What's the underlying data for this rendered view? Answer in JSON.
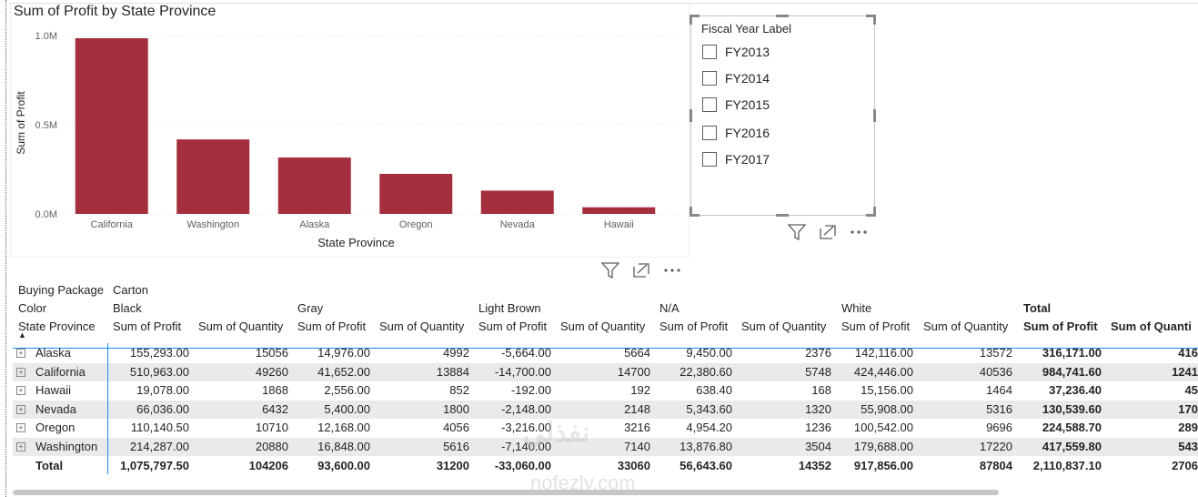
{
  "chart": {
    "title": "Sum of Profit by State Province"
  },
  "chart_data": {
    "type": "bar",
    "title": "Sum of Profit by State Province",
    "xlabel": "State Province",
    "ylabel": "Sum of Profit",
    "categories": [
      "California",
      "Washington",
      "Alaska",
      "Oregon",
      "Nevada",
      "Hawaii"
    ],
    "values": [
      984741.6,
      417559.8,
      316171.0,
      224588.7,
      130539.6,
      37236.4
    ],
    "yticks": [
      "0.0M",
      "0.5M",
      "1.0M"
    ],
    "ytick_values": [
      0,
      500000,
      1000000
    ],
    "ylim": [
      0,
      1000000
    ],
    "grid": true,
    "bar_color": "#a4303f"
  },
  "slicer": {
    "title": "Fiscal Year Label",
    "items": [
      "FY2013",
      "FY2014",
      "FY2015",
      "FY2016",
      "FY2017"
    ]
  },
  "icons": {
    "filter": "filter-icon",
    "focus": "focus-mode-icon",
    "more": "more-options-icon"
  },
  "matrix": {
    "h1_label": "Buying Package",
    "h1_value": "Carton",
    "h2_label": "Color",
    "colors": [
      "Black",
      "Gray",
      "Light Brown",
      "N/A",
      "White",
      "Total"
    ],
    "h3_label": "State Province",
    "measure_profit": "Sum of Profit",
    "measure_quantity": "Sum of Quantity",
    "total_measure_quantity": "Sum of Quanti",
    "rows": [
      {
        "state": "Alaska",
        "cells": [
          "155,293.00",
          "15056",
          "14,976.00",
          "4992",
          "-5,664.00",
          "5664",
          "9,450.00",
          "2376",
          "142,116.00",
          "13572",
          "316,171.00",
          "416"
        ]
      },
      {
        "state": "California",
        "cells": [
          "510,963.00",
          "49260",
          "41,652.00",
          "13884",
          "-14,700.00",
          "14700",
          "22,380.60",
          "5748",
          "424,446.00",
          "40536",
          "984,741.60",
          "1241"
        ]
      },
      {
        "state": "Hawaii",
        "cells": [
          "19,078.00",
          "1868",
          "2,556.00",
          "852",
          "-192.00",
          "192",
          "638.40",
          "168",
          "15,156.00",
          "1464",
          "37,236.40",
          "45"
        ]
      },
      {
        "state": "Nevada",
        "cells": [
          "66,036.00",
          "6432",
          "5,400.00",
          "1800",
          "-2,148.00",
          "2148",
          "5,343.60",
          "1320",
          "55,908.00",
          "5316",
          "130,539.60",
          "170"
        ]
      },
      {
        "state": "Oregon",
        "cells": [
          "110,140.50",
          "10710",
          "12,168.00",
          "4056",
          "-3,216.00",
          "3216",
          "4,954.20",
          "1236",
          "100,542.00",
          "9696",
          "224,588.70",
          "289"
        ]
      },
      {
        "state": "Washington",
        "cells": [
          "214,287.00",
          "20880",
          "16,848.00",
          "5616",
          "-7,140.00",
          "7140",
          "13,876.80",
          "3504",
          "179,688.00",
          "17220",
          "417,559.80",
          "543"
        ]
      }
    ],
    "total": {
      "label": "Total",
      "cells": [
        "1,075,797.50",
        "104206",
        "93,600.00",
        "31200",
        "-33,060.00",
        "33060",
        "56,643.60",
        "14352",
        "917,856.00",
        "87804",
        "2,110,837.10",
        "2706"
      ]
    }
  },
  "watermark": {
    "text": "نفذلي",
    "url": "nofezly.com"
  }
}
